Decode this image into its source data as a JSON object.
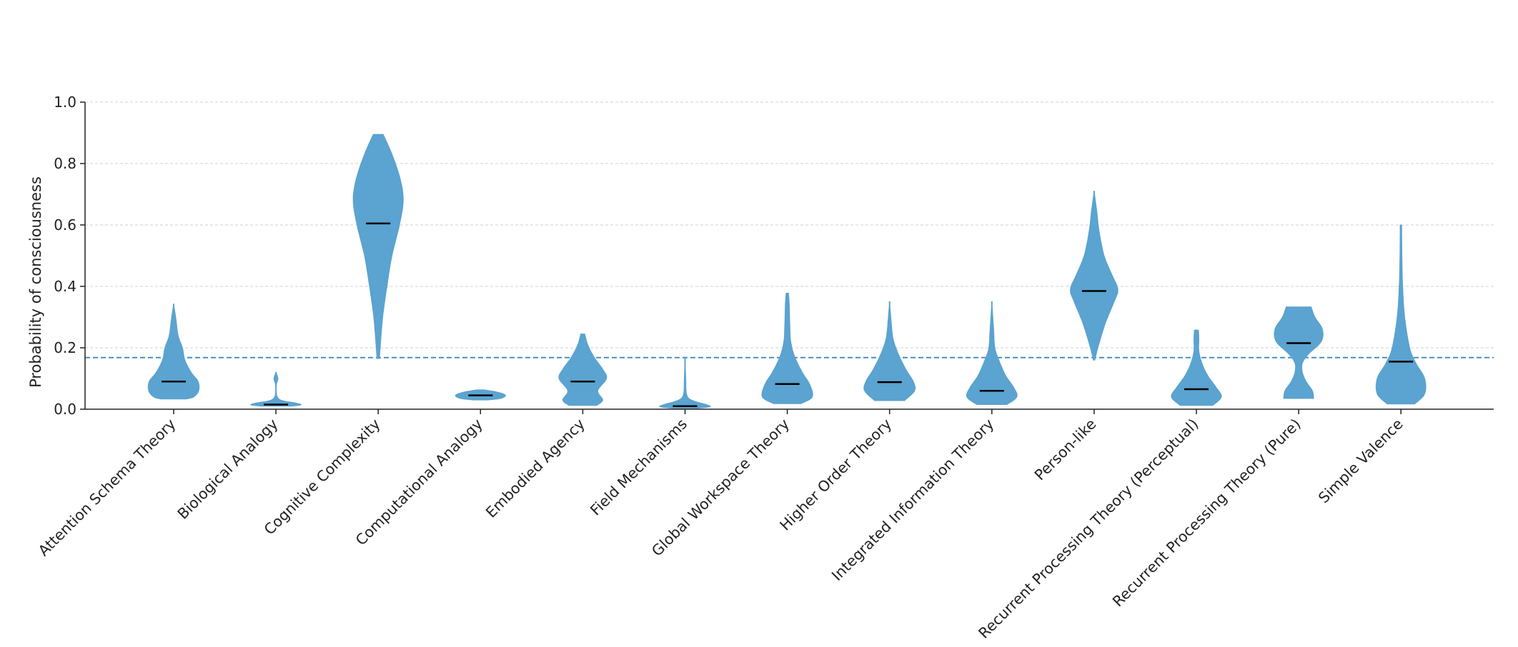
{
  "chart_data": {
    "type": "violin",
    "title": "",
    "xlabel": "",
    "ylabel": "Probability of consciousness",
    "ylim": [
      0,
      1.0
    ],
    "yticks": [
      "0.0",
      "0.2",
      "0.4",
      "0.6",
      "0.8",
      "1.0"
    ],
    "grid": "horizontal-dashed",
    "reference_line": 0.168,
    "colors": {
      "violin": "#5ba3d0",
      "median": "#000000",
      "reference": "#4a8fc0",
      "grid": "#d0d0d0",
      "axis": "#222222"
    },
    "categories": [
      "Attention Schema Theory",
      "Biological Analogy",
      "Cognitive Complexity",
      "Computational Analogy",
      "Embodied Agency",
      "Field Mechanisms",
      "Global Workspace Theory",
      "Higher Order Theory",
      "Integrated Information Theory",
      "Person-like",
      "Recurrent Processing Theory (Perceptual)",
      "Recurrent Processing Theory (Pure)",
      "Simple Valence"
    ],
    "medians": [
      0.09,
      0.015,
      0.605,
      0.045,
      0.09,
      0.01,
      0.082,
      0.088,
      0.06,
      0.385,
      0.065,
      0.215,
      0.155
    ],
    "ranges": [
      [
        0.033,
        0.342
      ],
      [
        0.01,
        0.12
      ],
      [
        0.165,
        0.895
      ],
      [
        0.03,
        0.063
      ],
      [
        0.012,
        0.245
      ],
      [
        0.003,
        0.165
      ],
      [
        0.018,
        0.378
      ],
      [
        0.028,
        0.35
      ],
      [
        0.015,
        0.35
      ],
      [
        0.16,
        0.71
      ],
      [
        0.012,
        0.258
      ],
      [
        0.035,
        0.333
      ],
      [
        0.017,
        0.6
      ]
    ],
    "density_profiles": [
      [
        [
          0.033,
          0.5
        ],
        [
          0.04,
          0.8
        ],
        [
          0.06,
          1.0
        ],
        [
          0.09,
          0.98
        ],
        [
          0.12,
          0.7
        ],
        [
          0.16,
          0.45
        ],
        [
          0.2,
          0.35
        ],
        [
          0.24,
          0.18
        ],
        [
          0.3,
          0.08
        ],
        [
          0.342,
          0.0
        ]
      ],
      [
        [
          0.01,
          0.6
        ],
        [
          0.014,
          1.0
        ],
        [
          0.02,
          0.8
        ],
        [
          0.027,
          0.3
        ],
        [
          0.035,
          0.1
        ],
        [
          0.05,
          0.02
        ],
        [
          0.08,
          0.02
        ],
        [
          0.1,
          0.08
        ],
        [
          0.12,
          0.0
        ]
      ],
      [
        [
          0.165,
          0.05
        ],
        [
          0.2,
          0.08
        ],
        [
          0.3,
          0.18
        ],
        [
          0.4,
          0.35
        ],
        [
          0.5,
          0.55
        ],
        [
          0.6,
          0.85
        ],
        [
          0.68,
          1.0
        ],
        [
          0.75,
          0.88
        ],
        [
          0.83,
          0.55
        ],
        [
          0.895,
          0.2
        ]
      ],
      [
        [
          0.03,
          0.3
        ],
        [
          0.035,
          0.8
        ],
        [
          0.045,
          1.0
        ],
        [
          0.055,
          0.7
        ],
        [
          0.063,
          0.15
        ]
      ],
      [
        [
          0.012,
          0.55
        ],
        [
          0.03,
          0.8
        ],
        [
          0.06,
          0.6
        ],
        [
          0.1,
          0.95
        ],
        [
          0.13,
          0.8
        ],
        [
          0.17,
          0.45
        ],
        [
          0.21,
          0.2
        ],
        [
          0.245,
          0.08
        ]
      ],
      [
        [
          0.003,
          0.5
        ],
        [
          0.008,
          1.0
        ],
        [
          0.015,
          0.85
        ],
        [
          0.03,
          0.25
        ],
        [
          0.05,
          0.06
        ],
        [
          0.1,
          0.03
        ],
        [
          0.165,
          0.0
        ]
      ],
      [
        [
          0.018,
          0.55
        ],
        [
          0.04,
          1.0
        ],
        [
          0.08,
          0.9
        ],
        [
          0.12,
          0.6
        ],
        [
          0.17,
          0.3
        ],
        [
          0.22,
          0.14
        ],
        [
          0.28,
          0.1
        ],
        [
          0.34,
          0.08
        ],
        [
          0.378,
          0.05
        ]
      ],
      [
        [
          0.028,
          0.6
        ],
        [
          0.06,
          1.0
        ],
        [
          0.09,
          0.95
        ],
        [
          0.13,
          0.65
        ],
        [
          0.18,
          0.35
        ],
        [
          0.23,
          0.14
        ],
        [
          0.29,
          0.06
        ],
        [
          0.35,
          0.0
        ]
      ],
      [
        [
          0.015,
          0.6
        ],
        [
          0.04,
          1.0
        ],
        [
          0.07,
          0.88
        ],
        [
          0.11,
          0.55
        ],
        [
          0.16,
          0.28
        ],
        [
          0.2,
          0.12
        ],
        [
          0.25,
          0.08
        ],
        [
          0.3,
          0.04
        ],
        [
          0.35,
          0.0
        ]
      ],
      [
        [
          0.16,
          0.03
        ],
        [
          0.2,
          0.15
        ],
        [
          0.28,
          0.45
        ],
        [
          0.35,
          0.8
        ],
        [
          0.39,
          0.95
        ],
        [
          0.44,
          0.7
        ],
        [
          0.5,
          0.4
        ],
        [
          0.58,
          0.2
        ],
        [
          0.65,
          0.1
        ],
        [
          0.71,
          0.0
        ]
      ],
      [
        [
          0.012,
          0.65
        ],
        [
          0.04,
          1.0
        ],
        [
          0.07,
          0.8
        ],
        [
          0.11,
          0.45
        ],
        [
          0.15,
          0.22
        ],
        [
          0.19,
          0.1
        ],
        [
          0.23,
          0.1
        ],
        [
          0.258,
          0.08
        ]
      ],
      [
        [
          0.035,
          0.6
        ],
        [
          0.06,
          0.55
        ],
        [
          0.09,
          0.3
        ],
        [
          0.12,
          0.15
        ],
        [
          0.15,
          0.15
        ],
        [
          0.18,
          0.4
        ],
        [
          0.22,
          0.9
        ],
        [
          0.26,
          0.95
        ],
        [
          0.3,
          0.65
        ],
        [
          0.333,
          0.5
        ]
      ],
      [
        [
          0.017,
          0.55
        ],
        [
          0.05,
          0.95
        ],
        [
          0.1,
          0.95
        ],
        [
          0.15,
          0.6
        ],
        [
          0.2,
          0.35
        ],
        [
          0.3,
          0.15
        ],
        [
          0.4,
          0.07
        ],
        [
          0.5,
          0.04
        ],
        [
          0.6,
          0.03
        ]
      ]
    ]
  }
}
